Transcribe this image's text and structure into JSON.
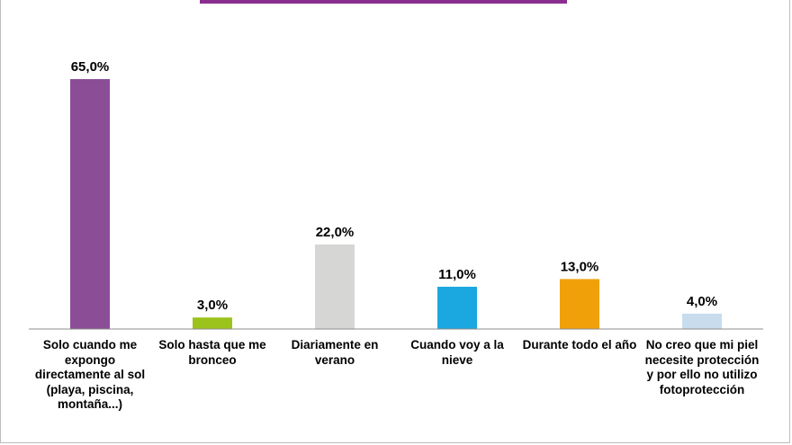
{
  "chart_data": {
    "type": "bar",
    "categories": [
      "Solo cuando me expongo directamente al sol (playa, piscina, montaña...)",
      "Solo hasta que me bronceo",
      "Diariamente en verano",
      "Cuando voy a la nieve",
      "Durante todo el año",
      "No creo que mi piel necesite protección y por ello no utilizo fotoprotección"
    ],
    "values": [
      65.0,
      3.0,
      22.0,
      11.0,
      13.0,
      4.0
    ],
    "value_labels": [
      "65,0%",
      "3,0%",
      "22,0%",
      "11,0%",
      "13,0%",
      "4,0%"
    ],
    "colors": [
      "#8b4d96",
      "#9cc31c",
      "#d6d6d4",
      "#1ba8e0",
      "#f0a10a",
      "#c8dcee"
    ],
    "ylim": [
      0,
      65
    ],
    "grid": false,
    "legend": "none"
  },
  "title_accent_color": "#8b2d8f"
}
